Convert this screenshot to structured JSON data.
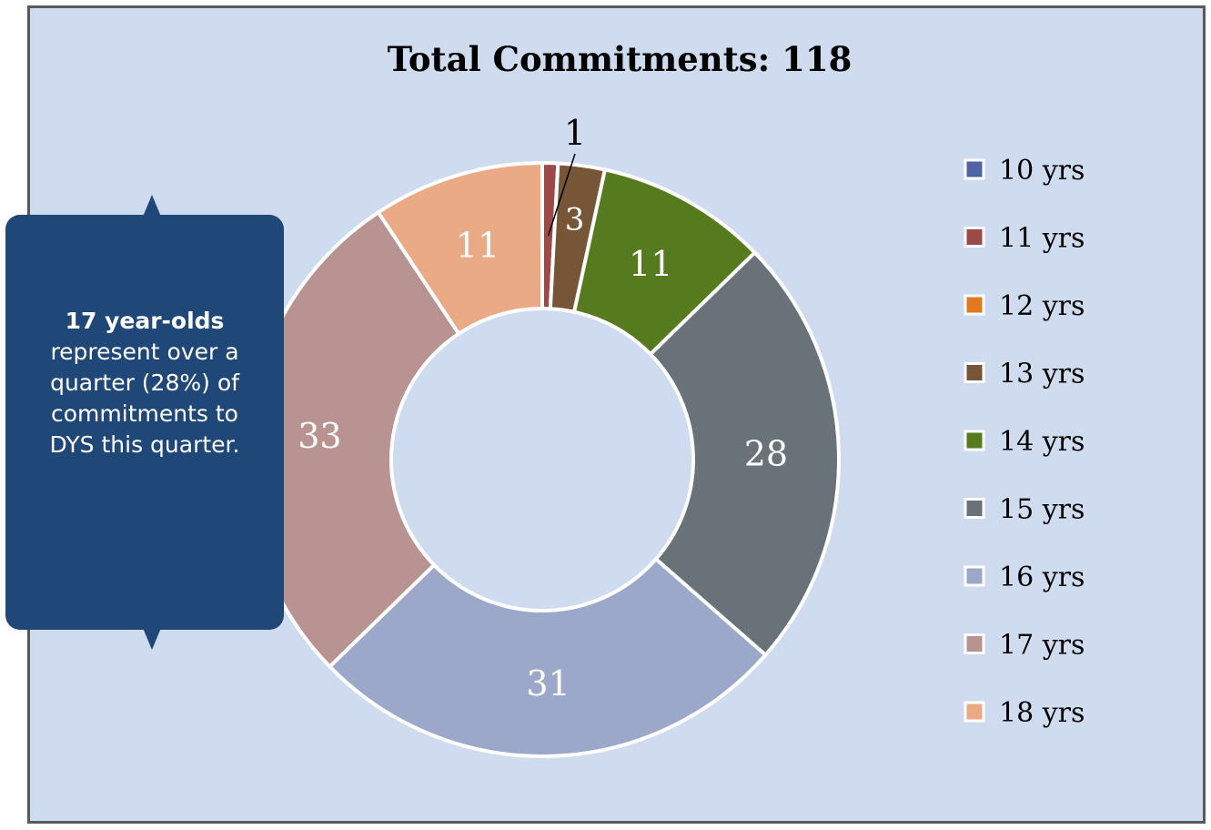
{
  "chart_data": {
    "type": "pie",
    "title": "Total Commitments: 118",
    "categories": [
      "10 yrs",
      "11 yrs",
      "12 yrs",
      "13 yrs",
      "14 yrs",
      "15 yrs",
      "16 yrs",
      "17 yrs",
      "18 yrs"
    ],
    "values": [
      0,
      1,
      0,
      3,
      11,
      28,
      31,
      33,
      11
    ],
    "data_labels": [
      "",
      "1",
      "",
      "3",
      "11",
      "28",
      "31",
      "33",
      "11"
    ],
    "colors": [
      "#4f64a5",
      "#9b4a47",
      "#e07a1f",
      "#765637",
      "#567a1e",
      "#697278",
      "#9ba8c9",
      "#b89391",
      "#eaaa86"
    ],
    "donut": true,
    "legend_position": "right"
  },
  "callout": {
    "bold": "17 year-olds",
    "text": "represent over a quarter (28%) of commitments to DYS this quarter."
  }
}
